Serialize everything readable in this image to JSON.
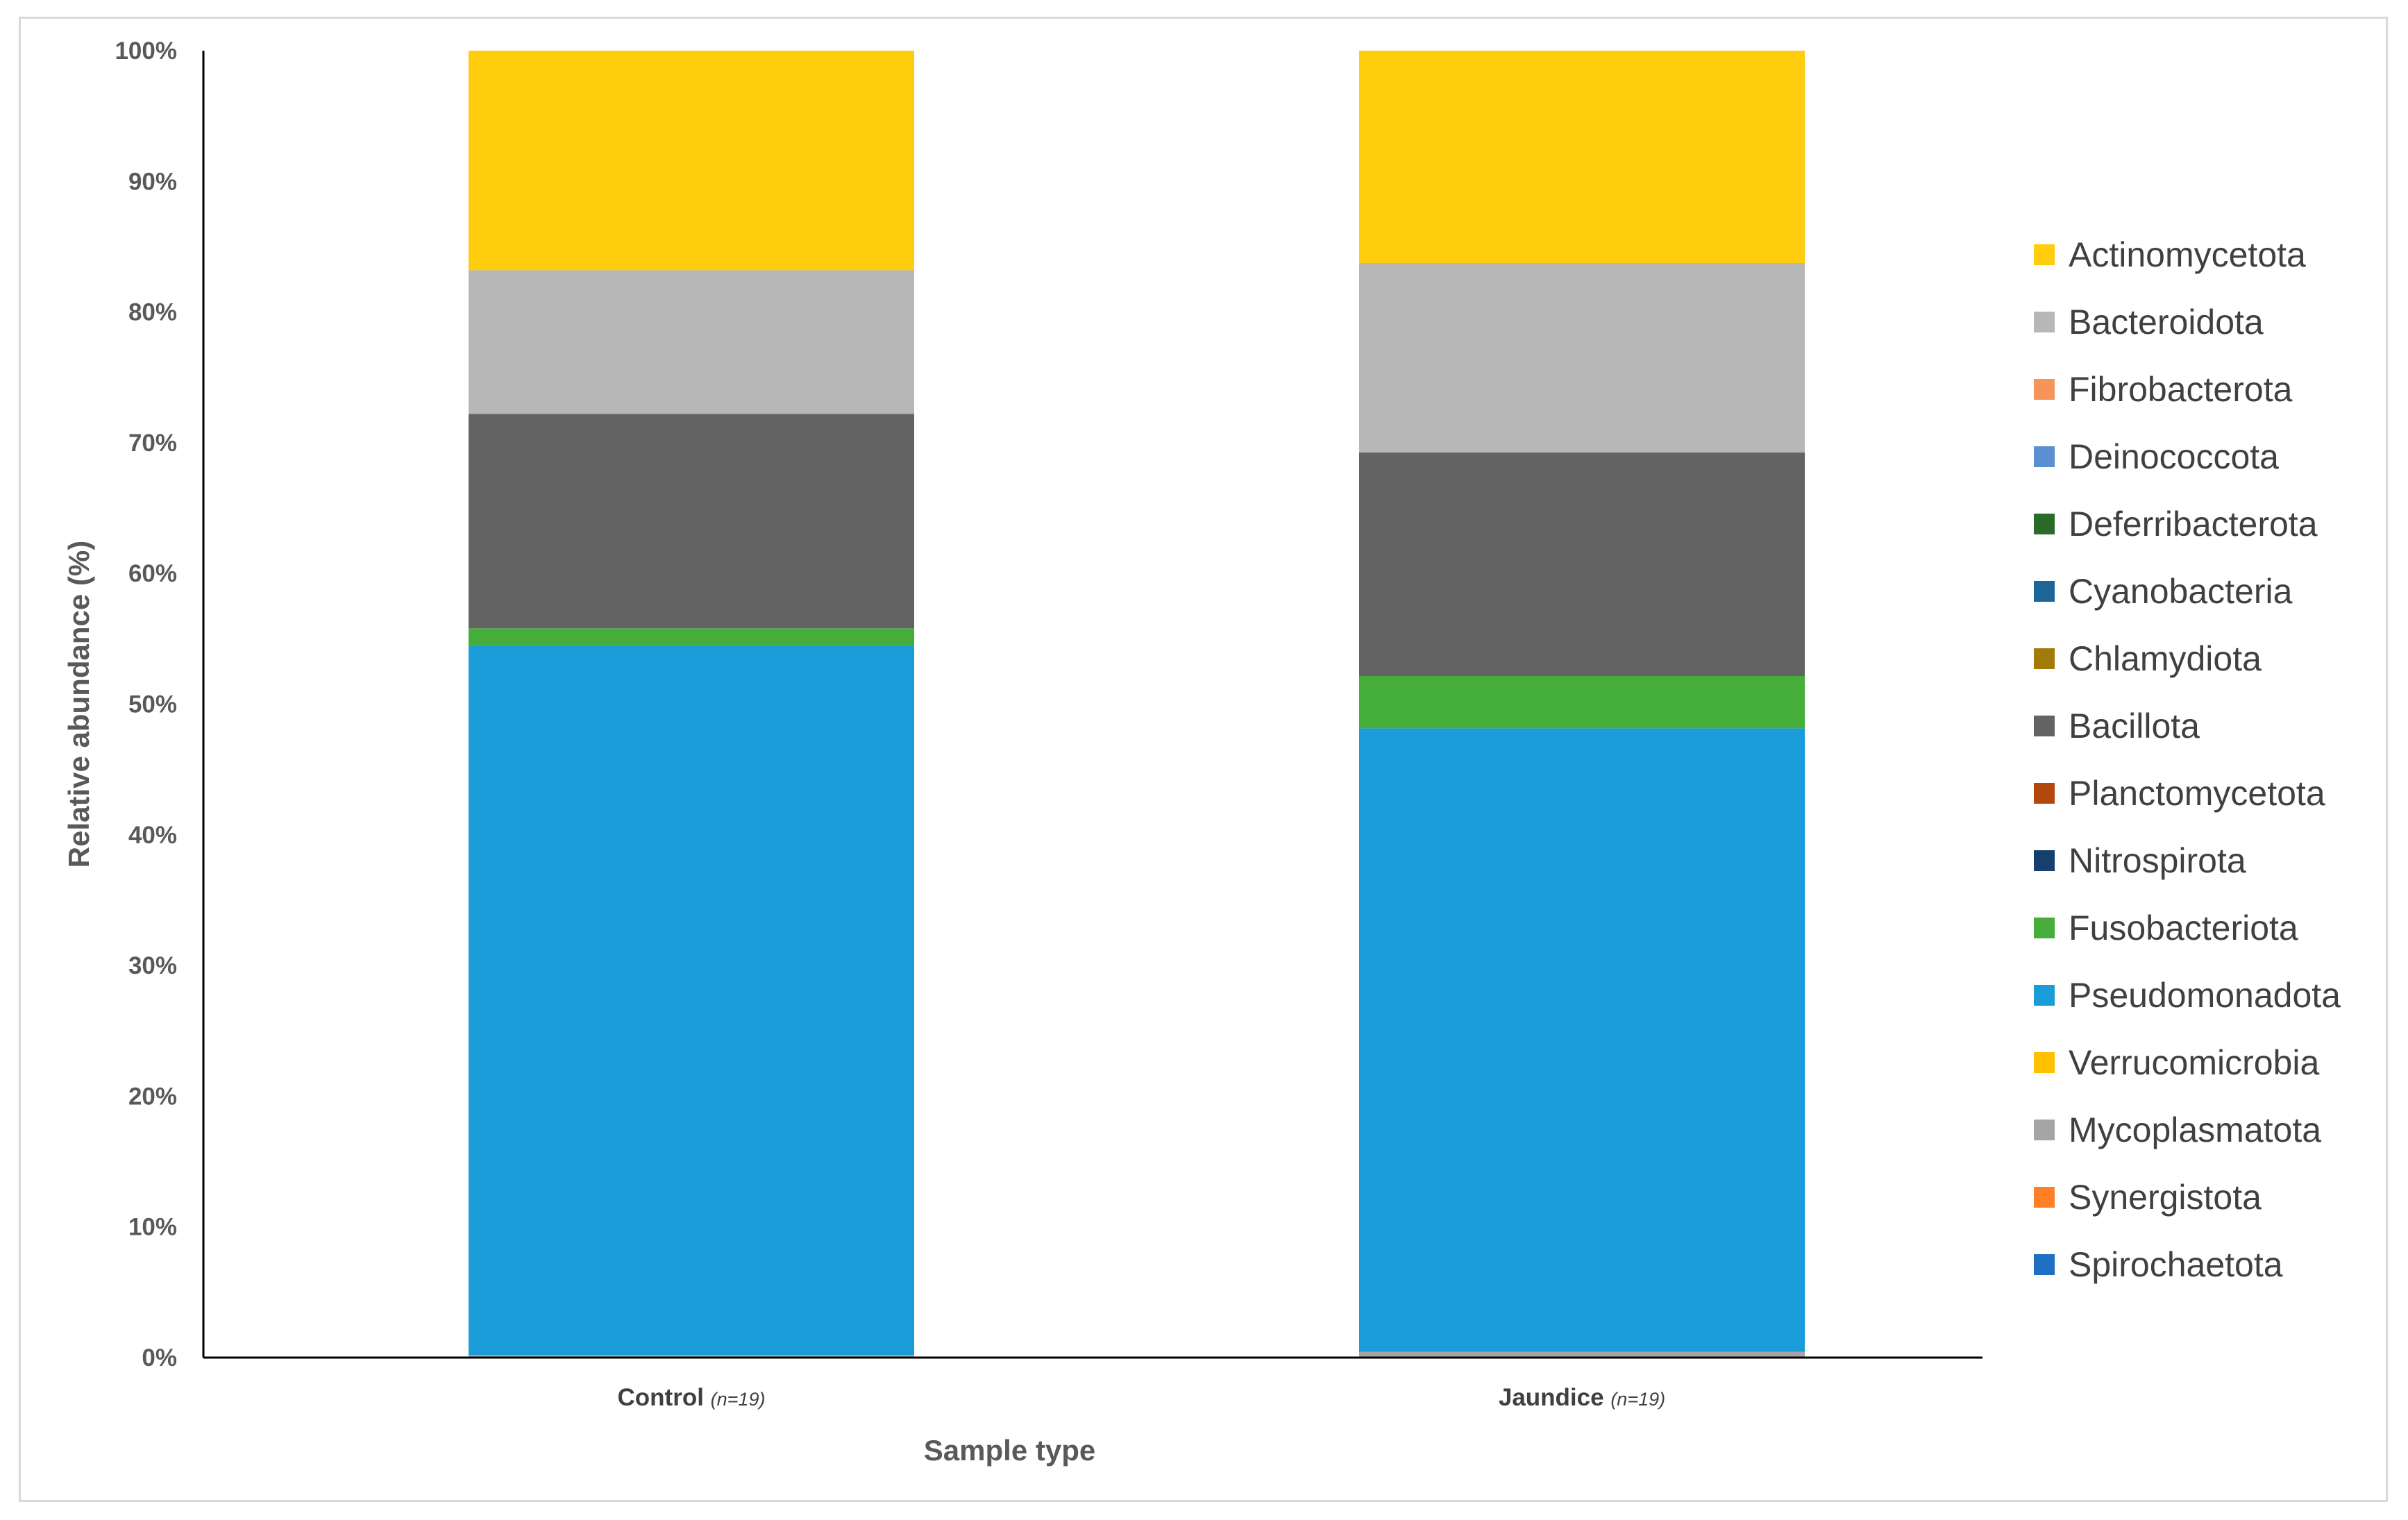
{
  "chart_data": {
    "type": "bar",
    "stacked": true,
    "normalized": true,
    "xlabel": "Sample type",
    "ylabel": "Relative abundance (%)",
    "ylim": [
      0,
      100
    ],
    "yticks": [
      "0%",
      "10%",
      "20%",
      "30%",
      "40%",
      "50%",
      "60%",
      "70%",
      "80%",
      "90%",
      "100%"
    ],
    "categories": [
      {
        "label": "Control",
        "note": "(n=19)"
      },
      {
        "label": "Jaundice",
        "note": "(n=19)"
      }
    ],
    "legend_position": "right",
    "series": [
      {
        "name": "Spirochaetota",
        "color": "#1f6fc5",
        "values": [
          0.05,
          0.05
        ]
      },
      {
        "name": "Synergistota",
        "color": "#ff7f27",
        "values": [
          0.0,
          0.0
        ]
      },
      {
        "name": "Mycoplasmatota",
        "color": "#a5a5a5",
        "values": [
          0.15,
          0.4
        ]
      },
      {
        "name": "Verrucomicrobia",
        "color": "#ffc000",
        "values": [
          0.0,
          0.0
        ]
      },
      {
        "name": "Pseudomonadota",
        "color": "#199cd8",
        "values": [
          54.3,
          47.7
        ]
      },
      {
        "name": "Fusobacteriota",
        "color": "#45ad3a",
        "values": [
          1.3,
          4.0
        ]
      },
      {
        "name": "Nitrospirota",
        "color": "#153f6e",
        "values": [
          0.0,
          0.0
        ]
      },
      {
        "name": "Planctomycetota",
        "color": "#b3480c",
        "values": [
          0.0,
          0.0
        ]
      },
      {
        "name": "Bacillota",
        "color": "#636363",
        "values": [
          16.4,
          17.1
        ]
      },
      {
        "name": "Chlamydiota",
        "color": "#a37a0a",
        "values": [
          0.0,
          0.0
        ]
      },
      {
        "name": "Cyanobacteria",
        "color": "#1b6598",
        "values": [
          0.0,
          0.0
        ]
      },
      {
        "name": "Deferribacterota",
        "color": "#2b6b2a",
        "values": [
          0.0,
          0.0
        ]
      },
      {
        "name": "Deinococcota",
        "color": "#5b8fd1",
        "values": [
          0.0,
          0.0
        ]
      },
      {
        "name": "Fibrobacterota",
        "color": "#f5955a",
        "values": [
          0.0,
          0.0
        ]
      },
      {
        "name": "Bacteroidota",
        "color": "#b7b7b7",
        "values": [
          11.0,
          14.5
        ]
      },
      {
        "name": "Actinomycetota",
        "color": "#ffcc0e",
        "values": [
          16.8,
          16.25
        ]
      }
    ]
  }
}
